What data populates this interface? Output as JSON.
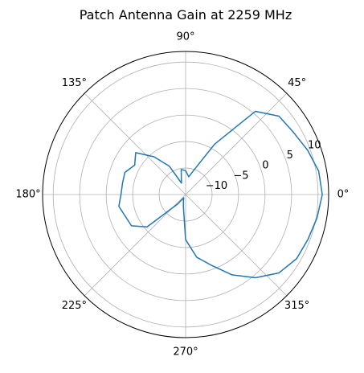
{
  "chart_data": {
    "type": "line",
    "projection": "polar",
    "title": "Patch Antenna Gain at 2259 MHz",
    "theta_tick_labels": [
      "0°",
      "45°",
      "90°",
      "135°",
      "180°",
      "225°",
      "270°",
      "315°"
    ],
    "theta_ticks_deg": [
      0,
      45,
      90,
      135,
      180,
      225,
      270,
      315
    ],
    "r_tick_labels": [
      "−10",
      "−5",
      "0",
      "5",
      "10"
    ],
    "r_ticks": [
      -10,
      -5,
      0,
      5,
      10
    ],
    "r_label_angle_deg": 22.5,
    "rlim": [
      -15,
      12
    ],
    "grid": true,
    "series": [
      {
        "color": "#1f77b4",
        "theta_deg": [
          0,
          10,
          20,
          30,
          40,
          50,
          60,
          70,
          80,
          90,
          100,
          110,
          120,
          130,
          140,
          150,
          160,
          170,
          180,
          190,
          200,
          210,
          220,
          230,
          240,
          250,
          260,
          270,
          280,
          290,
          300,
          310,
          320,
          330,
          340,
          350,
          360
        ],
        "r": [
          10.8,
          10.5,
          9.5,
          8.5,
          8,
          5.5,
          -4,
          -9.8,
          -11.6,
          -10.5,
          -10.2,
          -12.7,
          -8.8,
          -5.7,
          -2.7,
          -3.9,
          -2.8,
          -2.9,
          -2.8,
          -2.2,
          -2.9,
          -3.2,
          -5.5,
          -12.7,
          -14.3,
          -13.8,
          -12.6,
          -6.5,
          -3,
          -0.8,
          2.5,
          5.5,
          8,
          9.2,
          9.6,
          10.2,
          10.8
        ]
      }
    ]
  }
}
